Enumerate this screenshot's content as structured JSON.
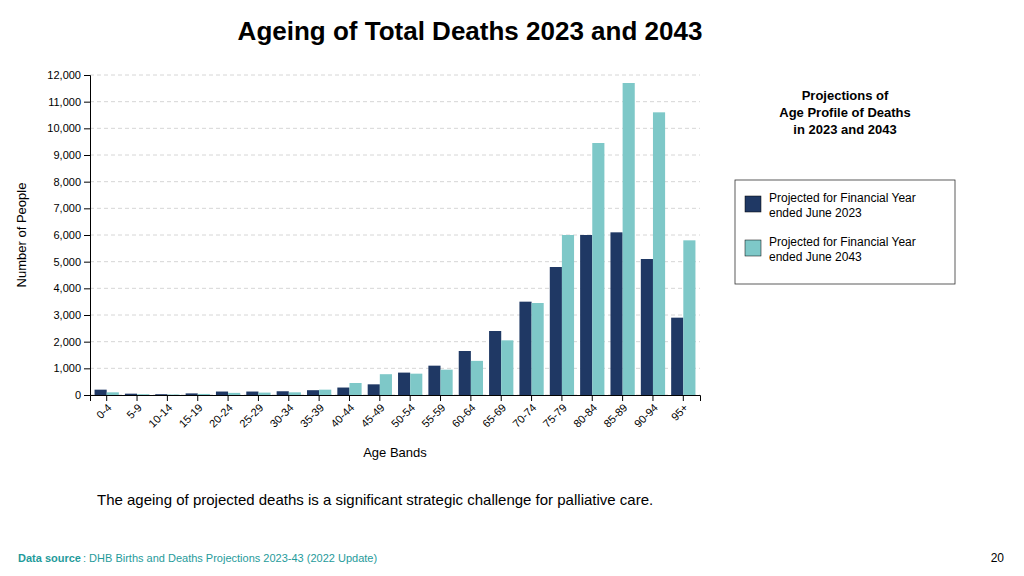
{
  "chart_data": {
    "type": "bar",
    "title": "Ageing of Total Deaths 2023 and 2043",
    "subtitle": "The ageing of projected deaths is a significant strategic challenge for palliative care.",
    "x_label": "Age Bands",
    "y_label": "Number of People",
    "annotations": [
      "Projections of\nAge Profile of Deaths\nin 2023 and 2043",
      "Data source",
      ": DHB Births and Deaths Projections 2023-43 (2022 Update)",
      "20"
    ],
    "categories": [
      "0-4",
      "5-9",
      "10-14",
      "15-19",
      "20-24",
      "25-29",
      "30-34",
      "35-39",
      "40-44",
      "45-49",
      "50-54",
      "55-59",
      "60-64",
      "65-69",
      "70-74",
      "75-79",
      "80-84",
      "85-89",
      "90-94",
      "95+"
    ],
    "series": [
      {
        "name": "Projected for Financial Year\nended June 2023",
        "color": "#1F3864",
        "values": [
          200,
          50,
          30,
          60,
          130,
          130,
          140,
          180,
          280,
          400,
          840,
          1100,
          1650,
          2400,
          3500,
          4800,
          6000,
          6100,
          5100,
          2900
        ]
      },
      {
        "name": "Projected for Financial Year\nended June 2043",
        "color": "#7EC8C8",
        "values": [
          100,
          30,
          20,
          40,
          80,
          90,
          100,
          200,
          450,
          780,
          800,
          950,
          1280,
          2050,
          3450,
          6000,
          9450,
          11700,
          10600,
          5800
        ]
      }
    ],
    "ylim": [
      0,
      12000
    ],
    "yticks": [
      0,
      {
        "value": 1000,
        "label": "1,000"
      },
      {
        "value": 2000,
        "label": "2,000"
      },
      {
        "value": 3000,
        "label": "3,000"
      },
      {
        "value": 4000,
        "label": "4,000"
      },
      {
        "value": 5000,
        "label": "5,000"
      },
      {
        "value": 6000,
        "label": "6,000"
      },
      {
        "value": 7000,
        "label": "7,000"
      },
      {
        "value": 8000,
        "label": "8,000"
      },
      {
        "value": 9000,
        "label": "9,000"
      },
      {
        "value": 10000,
        "label": "10,000"
      },
      {
        "value": 11000,
        "label": "11,000"
      },
      {
        "value": 12000,
        "label": "12,000"
      }
    ],
    "grid": true,
    "legend": "right"
  }
}
